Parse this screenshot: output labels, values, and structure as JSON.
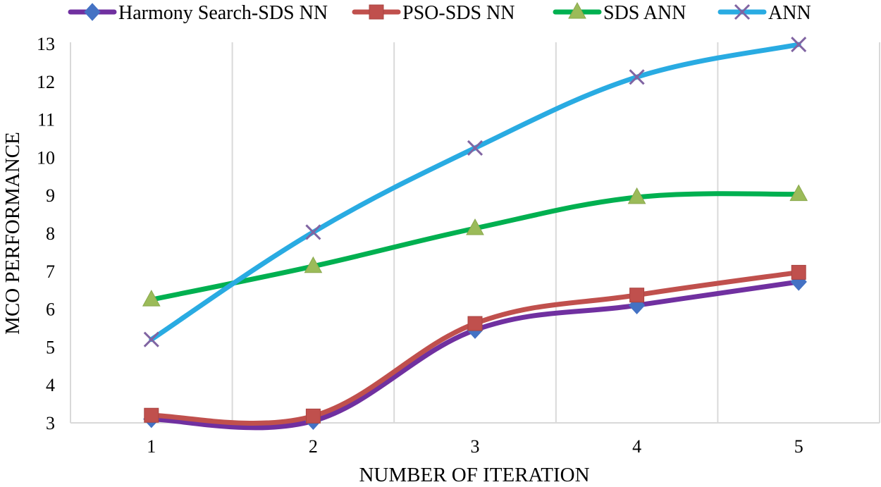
{
  "chart_data": {
    "type": "line",
    "title": "",
    "xlabel": "NUMBER OF ITERATION",
    "ylabel": "MCO PERFORMANCE",
    "categories": [
      "1",
      "2",
      "3",
      "4",
      "5"
    ],
    "ylim": [
      3,
      13
    ],
    "yticks": [
      3,
      4,
      5,
      6,
      7,
      8,
      9,
      10,
      11,
      12,
      13
    ],
    "grid": "vertical",
    "legend": "top",
    "series": [
      {
        "name": "Harmony Search-SDS NN",
        "values": [
          3.1,
          3.05,
          5.45,
          6.1,
          6.72
        ],
        "color": "#7030A0",
        "marker": "diamond",
        "marker_color": "#4472C4"
      },
      {
        "name": "PSO-SDS NN",
        "values": [
          3.2,
          3.18,
          5.62,
          6.37,
          6.97
        ],
        "color": "#C0504D",
        "marker": "square",
        "marker_color": "#C0504D"
      },
      {
        "name": "SDS ANN",
        "values": [
          6.25,
          7.13,
          8.13,
          8.95,
          9.03
        ],
        "color": "#00B050",
        "marker": "triangle",
        "marker_color": "#9BBB59"
      },
      {
        "name": "ANN",
        "values": [
          5.2,
          8.03,
          10.25,
          12.12,
          12.98
        ],
        "color": "#29ABE2",
        "marker": "x",
        "marker_color": "#8064A2"
      }
    ]
  }
}
